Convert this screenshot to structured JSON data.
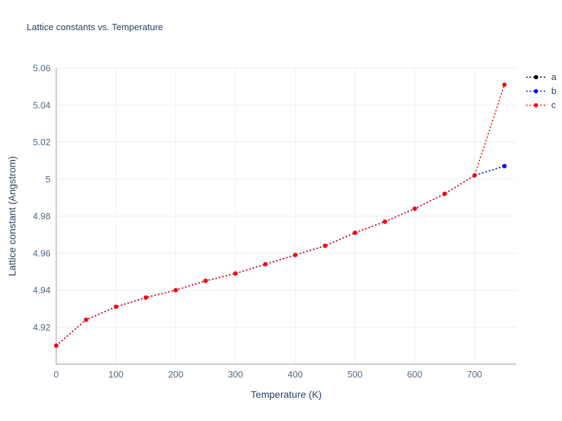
{
  "chart_data": {
    "type": "line",
    "title": "Lattice constants vs. Temperature",
    "xlabel": "Temperature (K)",
    "ylabel": "Lattice constant (Angstrom)",
    "line_style": "dotted",
    "marker": "circle",
    "grid": true,
    "legend_position": "top-right-outside",
    "x": [
      0,
      50,
      100,
      150,
      200,
      250,
      300,
      350,
      400,
      450,
      500,
      550,
      600,
      650,
      700,
      750
    ],
    "series": [
      {
        "name": "a",
        "color": "#000000",
        "values": [
          4.91,
          4.924,
          4.931,
          4.936,
          4.94,
          4.945,
          4.949,
          4.954,
          4.959,
          4.964,
          4.971,
          4.977,
          4.984,
          4.992,
          5.002,
          5.007
        ]
      },
      {
        "name": "b",
        "color": "#0000ff",
        "values": [
          4.91,
          4.924,
          4.931,
          4.936,
          4.94,
          4.945,
          4.949,
          4.954,
          4.959,
          4.964,
          4.971,
          4.977,
          4.984,
          4.992,
          5.002,
          5.007
        ]
      },
      {
        "name": "c",
        "color": "#ff0000",
        "values": [
          4.91,
          4.924,
          4.931,
          4.936,
          4.94,
          4.945,
          4.949,
          4.954,
          4.959,
          4.964,
          4.971,
          4.977,
          4.984,
          4.992,
          5.002,
          5.051
        ]
      }
    ],
    "xlim": [
      0,
      770
    ],
    "ylim": [
      4.9,
      5.06
    ],
    "x_ticks": [
      0,
      100,
      200,
      300,
      400,
      500,
      600,
      700
    ],
    "x_tick_labels": [
      "0",
      "100",
      "200",
      "300",
      "400",
      "500",
      "600",
      "700"
    ],
    "y_ticks": [
      4.92,
      4.94,
      4.96,
      4.98,
      5.0,
      5.02,
      5.04,
      5.06
    ],
    "y_tick_labels": [
      "4.92",
      "4.94",
      "4.96",
      "4.98",
      "5",
      "5.02",
      "5.04",
      "5.06"
    ]
  },
  "colors": {
    "title": "#2a3f5f",
    "axis_title": "#2a3f5f",
    "tick": "#506784",
    "axis_line": "#999999",
    "grid": "#ebedf2",
    "background": "#ffffff"
  }
}
